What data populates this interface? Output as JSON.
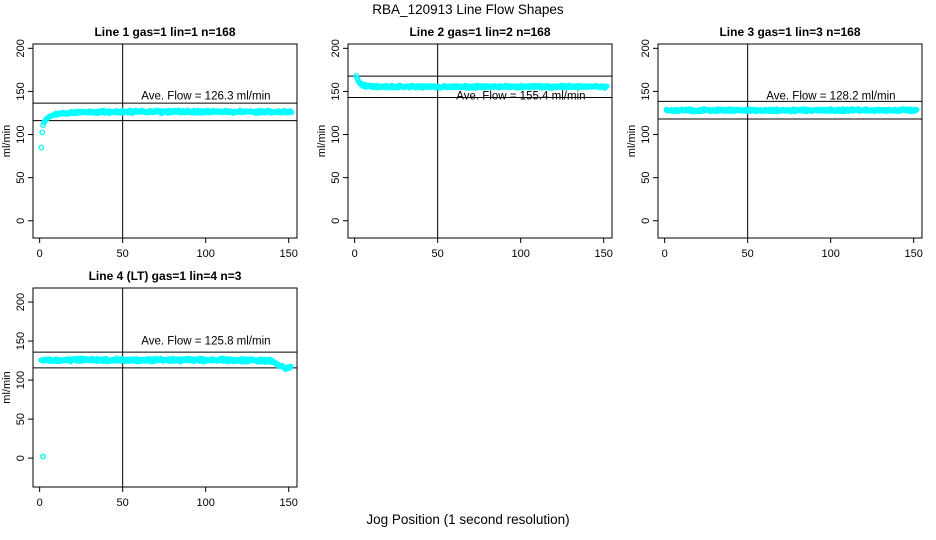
{
  "title": "RBA_120913  Line Flow Shapes",
  "xlabel": "Jog Position (1 second resolution)",
  "colors": {
    "points": "#00FFFF",
    "axis": "#000000",
    "background": "#FFFFFF"
  },
  "chart_data": [
    {
      "type": "scatter",
      "title": "Line 1 gas=1 lin=1 n=168",
      "ylabel": "ml/min",
      "annotation": "Ave. Flow =  126.3  ml/min",
      "ave_flow": 126.3,
      "xticks": [
        0,
        50,
        100,
        150
      ],
      "yticks": [
        0,
        50,
        100,
        150,
        200
      ],
      "xlim": [
        -4,
        155
      ],
      "ylim": [
        0,
        200
      ],
      "ref_lines": {
        "upper": 136.4,
        "lower": 116.2,
        "vertical_x": 50
      },
      "profile": [
        [
          1,
          85
        ],
        [
          1.6,
          104
        ],
        [
          2.1,
          111
        ],
        [
          2.7,
          114.5
        ],
        [
          3.4,
          116.5
        ],
        [
          4.2,
          118.2
        ],
        [
          5,
          119.6
        ],
        [
          6,
          120.8
        ],
        [
          7,
          121.7
        ],
        [
          8,
          122.4
        ],
        [
          9,
          122.9
        ],
        [
          10,
          123.3
        ],
        [
          12,
          124
        ],
        [
          14,
          124.5
        ],
        [
          17,
          125
        ],
        [
          20,
          125.4
        ],
        [
          25,
          125.8
        ],
        [
          30,
          126
        ],
        [
          40,
          126.2
        ],
        [
          60,
          126.4
        ],
        [
          100,
          126.4
        ],
        [
          152,
          126.4
        ]
      ],
      "band_halfwidth": 2.0,
      "sparse_until": 9,
      "outliers": []
    },
    {
      "type": "scatter",
      "title": "Line 2 gas=1 lin=2 n=168",
      "ylabel": "ml/min",
      "annotation": "Ave. Flow =  155.4  ml/min",
      "ave_flow": 155.4,
      "xticks": [
        0,
        50,
        100,
        150
      ],
      "yticks": [
        0,
        50,
        100,
        150,
        200
      ],
      "xlim": [
        -4,
        155
      ],
      "ylim": [
        0,
        200
      ],
      "ref_lines": {
        "upper": 167.8,
        "lower": 143.0,
        "vertical_x": 50
      },
      "profile": [
        [
          1,
          168
        ],
        [
          1.5,
          165.5
        ],
        [
          2,
          163
        ],
        [
          2.5,
          161
        ],
        [
          3,
          159.8
        ],
        [
          3.7,
          158.7
        ],
        [
          4.5,
          157.8
        ],
        [
          5.5,
          157
        ],
        [
          6.5,
          156.5
        ],
        [
          8,
          156
        ],
        [
          10,
          155.7
        ],
        [
          13,
          155.5
        ],
        [
          18,
          155.4
        ],
        [
          30,
          155.4
        ],
        [
          60,
          155.4
        ],
        [
          100,
          155.5
        ],
        [
          152,
          155.5
        ]
      ],
      "band_halfwidth": 1.9,
      "sparse_until": 4,
      "outliers": []
    },
    {
      "type": "scatter",
      "title": "Line 3 gas=1 lin=3 n=168",
      "ylabel": "ml/min",
      "annotation": "Ave. Flow =  128.2  ml/min",
      "ave_flow": 128.2,
      "xticks": [
        0,
        50,
        100,
        150
      ],
      "yticks": [
        0,
        50,
        100,
        150,
        200
      ],
      "xlim": [
        -4,
        155
      ],
      "ylim": [
        0,
        200
      ],
      "ref_lines": {
        "upper": 138.5,
        "lower": 118.0,
        "vertical_x": 50
      },
      "profile": [
        [
          1,
          128.1
        ],
        [
          30,
          128.2
        ],
        [
          60,
          128.1
        ],
        [
          100,
          128.2
        ],
        [
          152,
          128.2
        ]
      ],
      "band_halfwidth": 1.9,
      "sparse_until": 0,
      "outliers": []
    },
    {
      "type": "scatter",
      "title": "Line 4 (LT) gas=1 lin=4 n=3",
      "ylabel": "ml/min",
      "annotation": "Ave. Flow =  125.8  ml/min",
      "ave_flow": 125.8,
      "xticks": [
        0,
        50,
        100,
        150
      ],
      "yticks": [
        0,
        50,
        100,
        150,
        200
      ],
      "xlim": [
        -4,
        155
      ],
      "ylim": [
        0,
        200
      ],
      "ref_lines": {
        "upper": 135.9,
        "lower": 115.7,
        "vertical_x": 50
      },
      "profile": [
        [
          1,
          125.3
        ],
        [
          10,
          125.8
        ],
        [
          20,
          125.4
        ],
        [
          30,
          126
        ],
        [
          40,
          125.5
        ],
        [
          50,
          125.9
        ],
        [
          60,
          125.4
        ],
        [
          70,
          125.9
        ],
        [
          80,
          125.5
        ],
        [
          90,
          125.8
        ],
        [
          100,
          125.4
        ],
        [
          110,
          125.8
        ],
        [
          120,
          125.4
        ],
        [
          130,
          125.6
        ],
        [
          136,
          125.2
        ],
        [
          139,
          124.2
        ],
        [
          142,
          122
        ],
        [
          144,
          119.5
        ],
        [
          146,
          117
        ],
        [
          148,
          114.8
        ],
        [
          150,
          115.8
        ],
        [
          151.5,
          117.5
        ]
      ],
      "band_halfwidth": 2.6,
      "sparse_until": 0,
      "outliers": [
        [
          2,
          2
        ]
      ]
    }
  ]
}
